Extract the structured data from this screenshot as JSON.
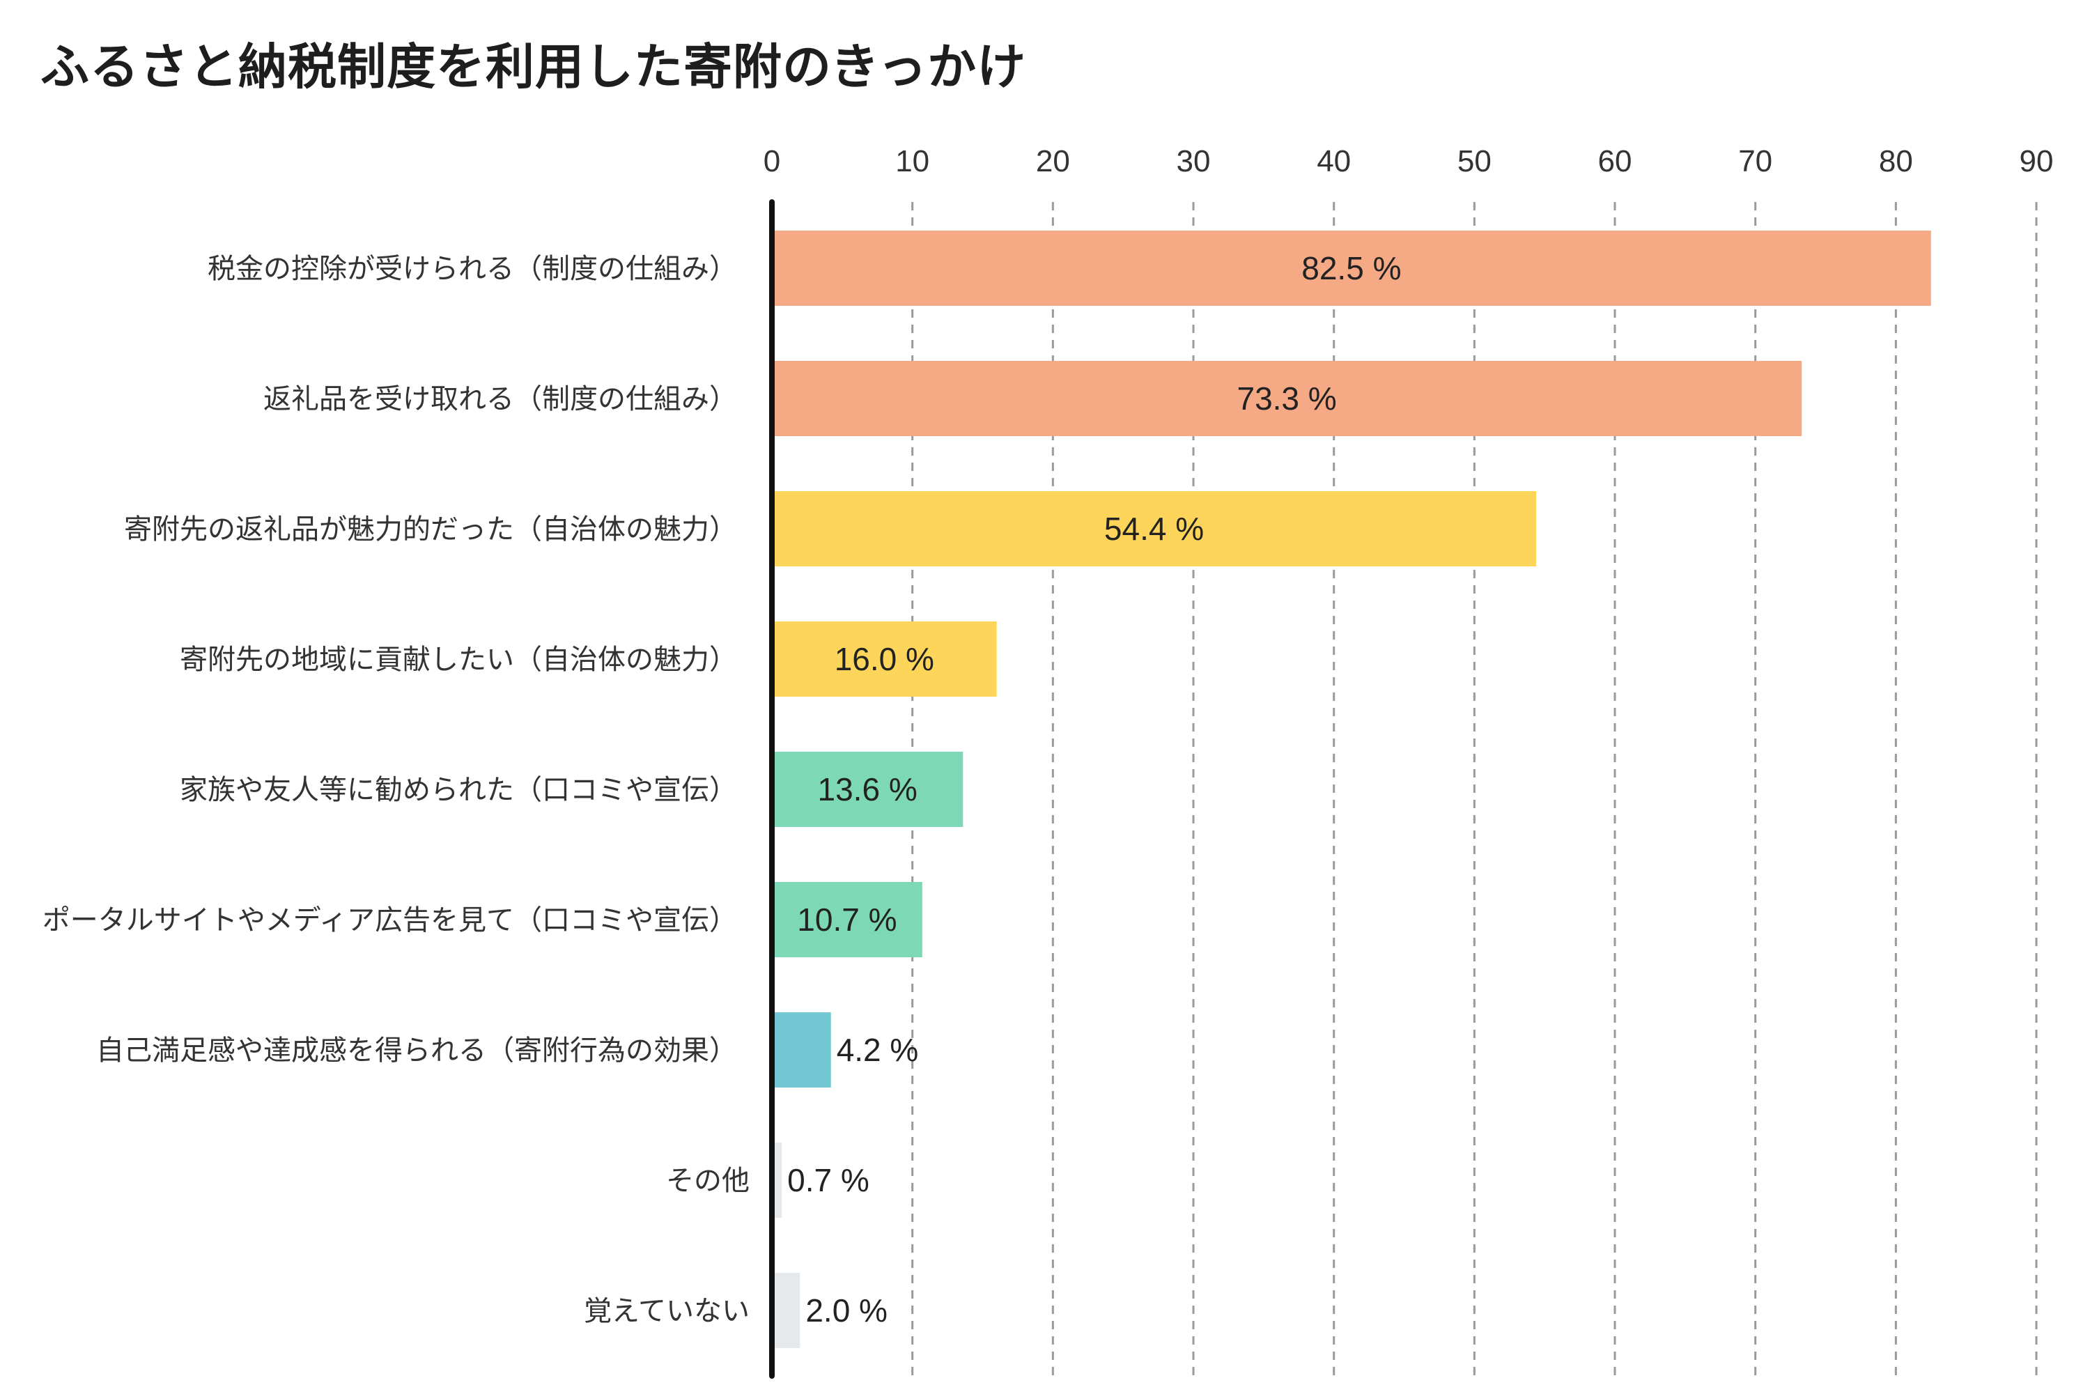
{
  "chart_data": {
    "type": "bar",
    "orientation": "horizontal",
    "title": "ふるさと納税制度を利用した寄附のきっかけ",
    "xlabel": "",
    "ylabel": "",
    "xlim": [
      0,
      90
    ],
    "xticks": [
      0,
      10,
      20,
      30,
      40,
      50,
      60,
      70,
      80,
      90
    ],
    "grid": "vertical dashed",
    "axis_position": "top",
    "value_suffix": " %",
    "categories": [
      "税金の控除が受けられる（制度の仕組み）",
      "返礼品を受け取れる（制度の仕組み）",
      "寄附先の返礼品が魅力的だった（自治体の魅力）",
      "寄附先の地域に貢献したい（自治体の魅力）",
      "家族や友人等に勧められた（口コミや宣伝）",
      "ポータルサイトやメディア広告を見て（口コミや宣伝）",
      "自己満足感や達成感を得られる（寄附行為の効果）",
      "その他",
      "覚えていない"
    ],
    "values": [
      82.5,
      73.3,
      54.4,
      16.0,
      13.6,
      10.7,
      4.2,
      0.7,
      2.0
    ],
    "value_labels": [
      "82.5 %",
      "73.3 %",
      "54.4 %",
      "16.0 %",
      "13.6 %",
      "10.7 %",
      "4.2 %",
      "0.7 %",
      "2.0 %"
    ],
    "colors": [
      "#F6A985",
      "#F6A985",
      "#FCD55A",
      "#FCD55A",
      "#7DD8B6",
      "#7DD8B6",
      "#72C7D3",
      "#E5E9EB",
      "#E5E9EB"
    ]
  }
}
